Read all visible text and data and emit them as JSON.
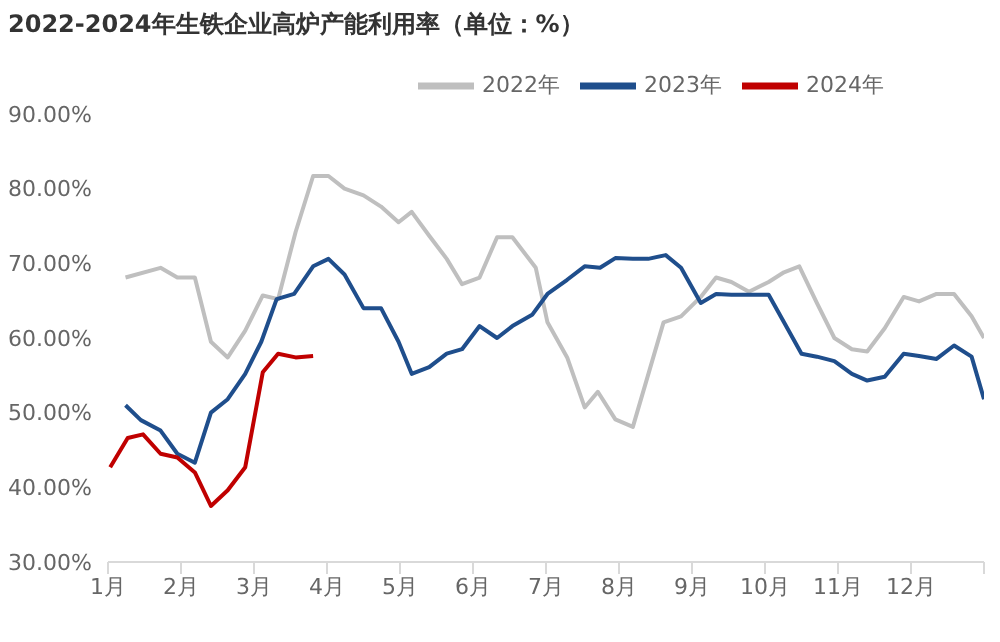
{
  "chart_data": {
    "type": "line",
    "title": "2022-2024年生铁企业高炉产能利用率（单位：%）",
    "legend": "top right",
    "xlim": [
      1,
      13
    ],
    "xticks": [
      {
        "value": 1,
        "label": "1月"
      },
      {
        "value": 2,
        "label": "2月"
      },
      {
        "value": 3,
        "label": "3月"
      },
      {
        "value": 4,
        "label": "4月"
      },
      {
        "value": 5,
        "label": "5月"
      },
      {
        "value": 6,
        "label": "6月"
      },
      {
        "value": 7,
        "label": "7月"
      },
      {
        "value": 8,
        "label": "8月"
      },
      {
        "value": 9,
        "label": "9月"
      },
      {
        "value": 10,
        "label": "10月"
      },
      {
        "value": 11,
        "label": "11月"
      },
      {
        "value": 12,
        "label": "12月"
      },
      {
        "value": 13,
        "label": null
      }
    ],
    "ylim": [
      30,
      90
    ],
    "yticks": [
      {
        "value": 30,
        "label": "30.00%"
      },
      {
        "value": 40,
        "label": "40.00%"
      },
      {
        "value": 50,
        "label": "50.00%"
      },
      {
        "value": 60,
        "label": "60.00%"
      },
      {
        "value": 70,
        "label": "70.00%"
      },
      {
        "value": 80,
        "label": "80.00%"
      },
      {
        "value": 90,
        "label": "90.00%"
      }
    ],
    "marker": "none",
    "line_style": "solid",
    "series": [
      {
        "name": "2022年",
        "color": "#bfbfbf",
        "x": [
          1.24,
          1.72,
          1.95,
          2.19,
          2.41,
          2.64,
          2.88,
          3.12,
          3.33,
          3.57,
          3.81,
          4.02,
          4.24,
          4.5,
          4.74,
          4.98,
          5.16,
          5.4,
          5.64,
          5.85,
          6.09,
          6.33,
          6.54,
          6.86,
          7.02,
          7.29,
          7.53,
          7.71,
          7.95,
          8.19,
          8.61,
          8.85,
          9.12,
          9.33,
          9.54,
          9.78,
          10.05,
          10.26,
          10.47,
          10.71,
          10.95,
          11.19,
          11.4,
          11.64,
          11.9,
          12.11,
          12.35,
          12.59,
          12.83,
          13
        ],
        "values": [
          68.1,
          69.4,
          68.1,
          68.1,
          59.5,
          57.4,
          61.0,
          65.7,
          65.2,
          74.2,
          81.7,
          81.7,
          80.0,
          79.1,
          77.6,
          75.5,
          76.9,
          73.7,
          70.6,
          67.2,
          68.1,
          73.5,
          73.5,
          69.4,
          62.1,
          57.4,
          50.7,
          52.8,
          49.1,
          48.1,
          62.1,
          62.9,
          65.5,
          68.1,
          67.5,
          66.2,
          67.5,
          68.8,
          69.6,
          64.7,
          60.0,
          58.5,
          58.2,
          61.3,
          65.5,
          64.9,
          65.9,
          65.9,
          62.9,
          60.0
        ]
      },
      {
        "name": "2023年",
        "color": "#1f4e8c",
        "x": [
          1.24,
          1.45,
          1.72,
          1.95,
          2.19,
          2.41,
          2.64,
          2.88,
          3.1,
          3.31,
          3.55,
          3.81,
          4.02,
          4.24,
          4.5,
          4.74,
          4.98,
          5.16,
          5.4,
          5.64,
          5.85,
          6.09,
          6.33,
          6.54,
          6.81,
          7.02,
          7.29,
          7.53,
          7.74,
          7.95,
          8.19,
          8.4,
          8.64,
          8.85,
          9.12,
          9.33,
          9.54,
          9.78,
          10.05,
          10.26,
          10.5,
          10.71,
          10.95,
          11.19,
          11.4,
          11.64,
          11.9,
          12.11,
          12.35,
          12.59,
          12.83,
          13
        ],
        "values": [
          51.0,
          49.0,
          47.6,
          44.5,
          43.3,
          50.0,
          51.8,
          55.2,
          59.5,
          65.2,
          65.9,
          69.6,
          70.6,
          68.5,
          64.0,
          64.0,
          59.5,
          55.2,
          56.1,
          57.9,
          58.5,
          61.6,
          60.0,
          61.6,
          63.1,
          65.9,
          67.8,
          69.6,
          69.4,
          70.7,
          70.6,
          70.6,
          71.1,
          69.4,
          64.7,
          65.9,
          65.8,
          65.8,
          65.8,
          62.1,
          57.9,
          57.5,
          56.9,
          55.2,
          54.3,
          54.8,
          57.9,
          57.6,
          57.2,
          59.0,
          57.5,
          51.8
        ]
      },
      {
        "name": "2024年",
        "color": "#c00000",
        "x": [
          1.03,
          1.27,
          1.48,
          1.72,
          1.95,
          2.19,
          2.41,
          2.64,
          2.88,
          3.12,
          3.33,
          3.57,
          3.81
        ],
        "values": [
          42.7,
          46.6,
          47.1,
          44.5,
          44.0,
          42.0,
          37.5,
          39.6,
          42.7,
          55.4,
          57.9,
          57.4,
          57.6
        ]
      }
    ]
  }
}
